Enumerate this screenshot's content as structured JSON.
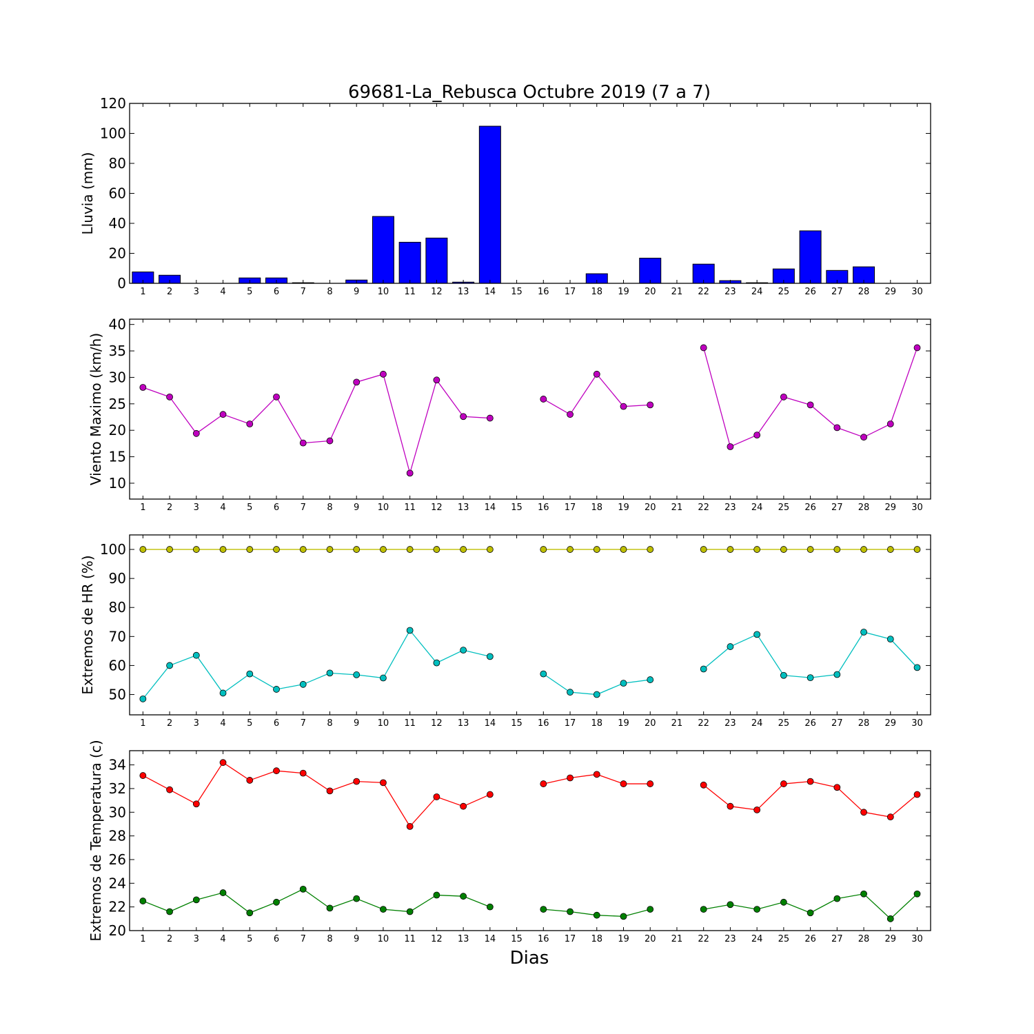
{
  "title": "69681-La_Rebusca Octubre 2019  (7 a 7)",
  "xlabel": "Dias",
  "chart_data": [
    {
      "type": "bar",
      "ylabel": "Lluvia (mm)",
      "ylim": [
        0,
        120
      ],
      "yticks": [
        0,
        20,
        40,
        60,
        80,
        100,
        120
      ],
      "categories": [
        "1",
        "2",
        "3",
        "4",
        "5",
        "6",
        "7",
        "8",
        "9",
        "10",
        "11",
        "12",
        "13",
        "14",
        "15",
        "16",
        "17",
        "18",
        "19",
        "20",
        "21",
        "22",
        "23",
        "24",
        "25",
        "26",
        "27",
        "28",
        "29",
        "30"
      ],
      "series": [
        {
          "color": "#0000ff",
          "values": [
            7.6,
            5.4,
            0,
            0,
            3.6,
            3.6,
            0.4,
            0,
            2.2,
            44.6,
            27.4,
            30.2,
            0.8,
            104.8,
            0,
            0,
            0,
            6.4,
            0,
            16.8,
            0,
            12.8,
            1.8,
            0.4,
            9.6,
            35.0,
            8.6,
            11.0,
            0,
            0
          ]
        }
      ]
    },
    {
      "type": "line",
      "ylabel": "Viento Maximo (km/h)",
      "ylim": [
        7,
        41
      ],
      "yticks": [
        10,
        15,
        20,
        25,
        30,
        35,
        40
      ],
      "categories": [
        "1",
        "2",
        "3",
        "4",
        "5",
        "6",
        "7",
        "8",
        "9",
        "10",
        "11",
        "12",
        "13",
        "14",
        "15",
        "16",
        "17",
        "18",
        "19",
        "20",
        "21",
        "22",
        "23",
        "24",
        "25",
        "26",
        "27",
        "28",
        "29",
        "30"
      ],
      "series": [
        {
          "color": "#bf00bf",
          "values": [
            28.1,
            26.3,
            19.4,
            23.0,
            21.2,
            26.3,
            17.6,
            18.0,
            29.1,
            30.6,
            11.9,
            29.5,
            22.6,
            22.3,
            null,
            25.9,
            23.0,
            30.6,
            24.5,
            24.8,
            null,
            35.6,
            16.9,
            19.1,
            26.3,
            24.8,
            20.5,
            18.7,
            21.2,
            35.6
          ]
        }
      ]
    },
    {
      "type": "line",
      "ylabel": "Extremos de HR (%)",
      "ylim": [
        43,
        105
      ],
      "yticks": [
        50,
        60,
        70,
        80,
        90,
        100
      ],
      "categories": [
        "1",
        "2",
        "3",
        "4",
        "5",
        "6",
        "7",
        "8",
        "9",
        "10",
        "11",
        "12",
        "13",
        "14",
        "15",
        "16",
        "17",
        "18",
        "19",
        "20",
        "21",
        "22",
        "23",
        "24",
        "25",
        "26",
        "27",
        "28",
        "29",
        "30"
      ],
      "series": [
        {
          "color": "#bfbf00",
          "values": [
            100,
            100,
            100,
            100,
            100,
            100,
            100,
            100,
            100,
            100,
            100,
            100,
            100,
            100,
            null,
            100,
            100,
            100,
            100,
            100,
            null,
            100,
            100,
            100,
            100,
            100,
            100,
            100,
            100,
            100
          ]
        },
        {
          "color": "#00bfbf",
          "values": [
            48.5,
            60.0,
            63.5,
            50.5,
            57.1,
            51.8,
            53.5,
            57.4,
            56.8,
            55.7,
            72.1,
            60.9,
            65.3,
            63.1,
            null,
            57.1,
            50.8,
            50.0,
            53.9,
            55.1,
            null,
            58.8,
            66.5,
            70.7,
            56.6,
            55.8,
            56.9,
            71.5,
            69.1,
            59.3
          ]
        }
      ]
    },
    {
      "type": "line",
      "ylabel": "Extremos de Temperatura (c)",
      "ylim": [
        20,
        35.2
      ],
      "yticks": [
        20,
        22,
        24,
        26,
        28,
        30,
        32,
        34
      ],
      "categories": [
        "1",
        "2",
        "3",
        "4",
        "5",
        "6",
        "7",
        "8",
        "9",
        "10",
        "11",
        "12",
        "13",
        "14",
        "15",
        "16",
        "17",
        "18",
        "19",
        "20",
        "21",
        "22",
        "23",
        "24",
        "25",
        "26",
        "27",
        "28",
        "29",
        "30"
      ],
      "series": [
        {
          "color": "#ff0000",
          "values": [
            33.1,
            31.9,
            30.7,
            34.2,
            32.7,
            33.5,
            33.3,
            31.8,
            32.6,
            32.5,
            28.8,
            31.3,
            30.5,
            31.5,
            null,
            32.4,
            32.9,
            33.2,
            32.4,
            32.4,
            null,
            32.3,
            30.5,
            30.2,
            32.4,
            32.6,
            32.1,
            30.0,
            29.6,
            31.5
          ]
        },
        {
          "color": "#008000",
          "values": [
            22.5,
            21.6,
            22.6,
            23.2,
            21.5,
            22.4,
            23.5,
            21.9,
            22.7,
            21.8,
            21.6,
            23.0,
            22.9,
            22.0,
            null,
            21.8,
            21.6,
            21.3,
            21.2,
            21.8,
            null,
            21.8,
            22.2,
            21.8,
            22.4,
            21.5,
            22.7,
            23.1,
            21.0,
            23.1
          ]
        }
      ]
    }
  ]
}
